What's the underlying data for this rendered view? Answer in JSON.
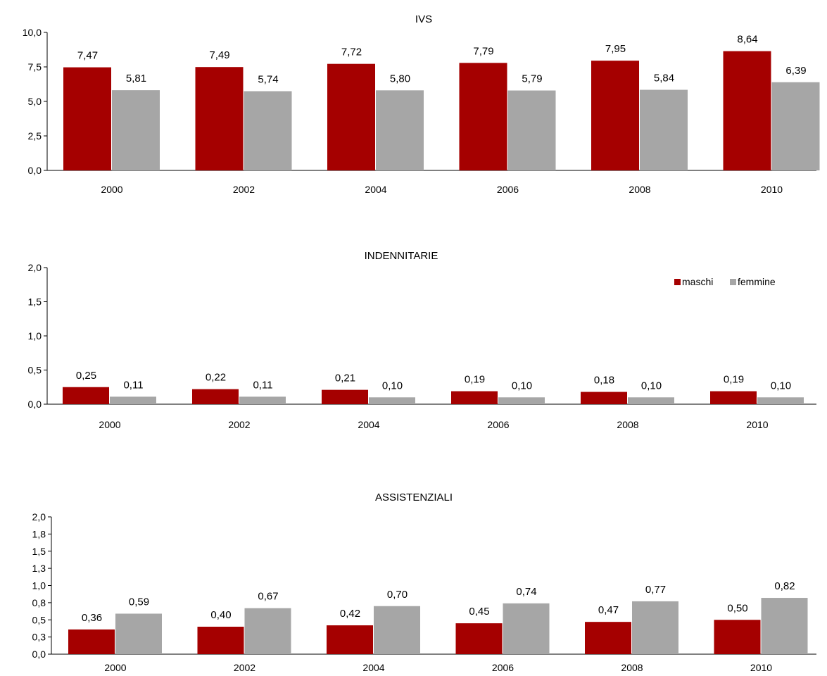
{
  "colors": {
    "maschi": "#a50000",
    "femmine": "#a6a6a6"
  },
  "legend": {
    "items": [
      "maschi",
      "femmine"
    ]
  },
  "chart_data": [
    {
      "type": "bar",
      "title": "IVS",
      "categories": [
        "2000",
        "2002",
        "2004",
        "2006",
        "2008",
        "2010"
      ],
      "series": [
        {
          "name": "maschi",
          "values": [
            7.47,
            7.49,
            7.72,
            7.79,
            7.95,
            8.64
          ],
          "labels": [
            "7,47",
            "7,49",
            "7,72",
            "7,79",
            "7,95",
            "8,64"
          ]
        },
        {
          "name": "femmine",
          "values": [
            5.81,
            5.74,
            5.8,
            5.79,
            5.84,
            6.39
          ],
          "labels": [
            "5,81",
            "5,74",
            "5,80",
            "5,79",
            "5,84",
            "6,39"
          ]
        }
      ],
      "ylim": [
        0,
        10
      ],
      "yticks": [
        0,
        2.5,
        5,
        7.5,
        10
      ],
      "ytick_labels": [
        "0,0",
        "2,5",
        "5,0",
        "7,5",
        "10,0"
      ],
      "grid": false
    },
    {
      "type": "bar",
      "title": "INDENNITARIE",
      "categories": [
        "2000",
        "2002",
        "2004",
        "2006",
        "2008",
        "2010"
      ],
      "series": [
        {
          "name": "maschi",
          "values": [
            0.25,
            0.22,
            0.21,
            0.19,
            0.18,
            0.19
          ],
          "labels": [
            "0,25",
            "0,22",
            "0,21",
            "0,19",
            "0,18",
            "0,19"
          ]
        },
        {
          "name": "femmine",
          "values": [
            0.11,
            0.11,
            0.1,
            0.1,
            0.1,
            0.1
          ],
          "labels": [
            "0,11",
            "0,11",
            "0,10",
            "0,10",
            "0,10",
            "0,10"
          ]
        }
      ],
      "ylim": [
        0,
        2
      ],
      "yticks": [
        0,
        0.5,
        1,
        1.5,
        2
      ],
      "ytick_labels": [
        "0,0",
        "0,5",
        "1,0",
        "1,5",
        "2,0"
      ],
      "legend": "top-right",
      "grid": false
    },
    {
      "type": "bar",
      "title": "ASSISTENZIALI",
      "categories": [
        "2000",
        "2002",
        "2004",
        "2006",
        "2008",
        "2010"
      ],
      "series": [
        {
          "name": "maschi",
          "values": [
            0.36,
            0.4,
            0.42,
            0.45,
            0.47,
            0.5
          ],
          "labels": [
            "0,36",
            "0,40",
            "0,42",
            "0,45",
            "0,47",
            "0,50"
          ]
        },
        {
          "name": "femmine",
          "values": [
            0.59,
            0.67,
            0.7,
            0.74,
            0.77,
            0.82
          ],
          "labels": [
            "0,59",
            "0,67",
            "0,70",
            "0,74",
            "0,77",
            "0,82"
          ]
        }
      ],
      "ylim": [
        0,
        2
      ],
      "yticks": [
        0,
        0.25,
        0.5,
        0.75,
        1,
        1.25,
        1.5,
        1.75,
        2
      ],
      "ytick_labels": [
        "0,0",
        "0,3",
        "0,5",
        "0,8",
        "1,0",
        "1,3",
        "1,5",
        "1,8",
        "2,0"
      ],
      "grid": false
    }
  ]
}
